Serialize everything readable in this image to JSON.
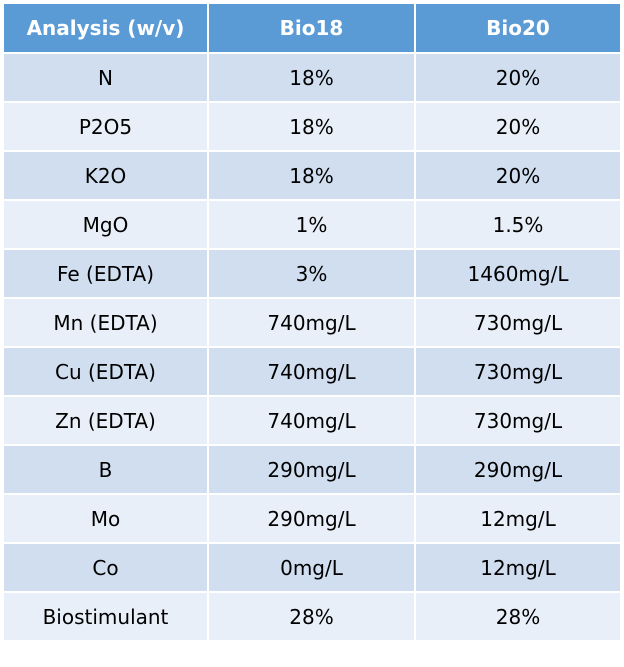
{
  "table": {
    "headers": [
      "Analysis (w/v)",
      "Bio18",
      "Bio20"
    ],
    "rows": [
      [
        "N",
        "18%",
        "20%"
      ],
      [
        "P2O5",
        "18%",
        "20%"
      ],
      [
        "K2O",
        "18%",
        "20%"
      ],
      [
        "MgO",
        "1%",
        "1.5%"
      ],
      [
        "Fe (EDTA)",
        "3%",
        "1460mg/L"
      ],
      [
        "Mn (EDTA)",
        "740mg/L",
        "730mg/L"
      ],
      [
        "Cu (EDTA)",
        "740mg/L",
        "730mg/L"
      ],
      [
        "Zn (EDTA)",
        "740mg/L",
        "730mg/L"
      ],
      [
        "B",
        "290mg/L",
        "290mg/L"
      ],
      [
        "Mo",
        "290mg/L",
        "12mg/L"
      ],
      [
        "Co",
        "0mg/L",
        "12mg/L"
      ],
      [
        "Biostimulant",
        "28%",
        "28%"
      ]
    ]
  },
  "colors": {
    "header_bg": "#5b9bd5",
    "header_text": "#ffffff",
    "row_odd_bg": "#d0def0",
    "row_even_bg": "#e9eff8",
    "border": "#ffffff"
  }
}
